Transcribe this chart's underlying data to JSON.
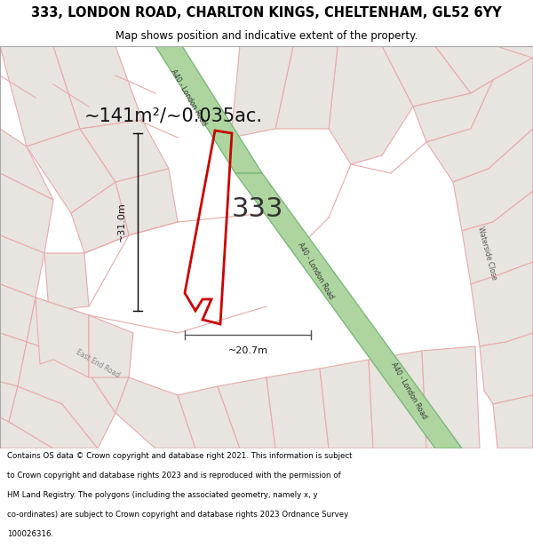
{
  "title": "333, LONDON ROAD, CHARLTON KINGS, CHELTENHAM, GL52 6YY",
  "subtitle": "Map shows position and indicative extent of the property.",
  "map_bg": "#f7f4f2",
  "road_green_fill": "#aed5a0",
  "road_green_edge": "#7ab87a",
  "plot_fill_light": "#e8e4e0",
  "plot_fill_lighter": "#f0ecec",
  "plot_stroke": "#cc0000",
  "cadastral_color": "#e8aaaa",
  "gray_road_color": "#c8c0bc",
  "label_333": "333",
  "area_label": "~141m²/~0.035ac.",
  "dim_width": "~20.7m",
  "dim_height": "~31.0m",
  "road_label_upper": "A40 - London Road",
  "road_label_mid": "A40 - London Road",
  "road_label_lower": "A40 - London Road",
  "waterside_close": "Waterside Close",
  "east_end_road": "East End Road",
  "footnote": "Contains OS data © Crown copyright and database right 2021. This information is subject to Crown copyright and database rights 2023 and is reproduced with the permission of HM Land Registry. The polygons (including the associated geometry, namely x, y co-ordinates) are subject to Crown copyright and database rights 2023 Ordnance Survey 100026316.",
  "title_fontsize": 10.5,
  "subtitle_fontsize": 8.5,
  "area_fontsize": 15,
  "label_fontsize": 22,
  "dim_fontsize": 8,
  "road_label_fontsize": 5.5,
  "foot_fontsize": 6.2
}
